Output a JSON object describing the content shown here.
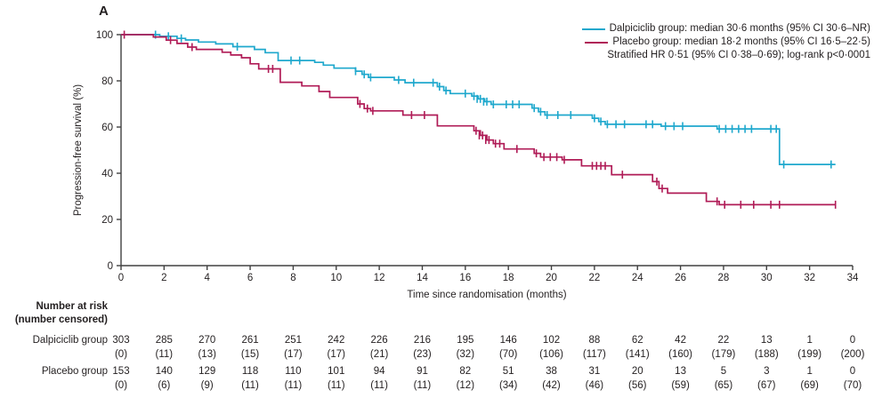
{
  "panel": {
    "label": "A"
  },
  "legend": {
    "entries": [
      {
        "label": "Dalpiciclib group: median 30·6 months (95% CI 30·6–NR)",
        "color": "#1FA8CD"
      },
      {
        "label": "Placebo group: median 18·2 months (95% CI 16·5–22·5)",
        "color": "#B01C57"
      }
    ],
    "note": "Stratified HR 0·51 (95% CI 0·38–0·69); log-rank p<0·0001"
  },
  "chart_data": {
    "type": "line",
    "subtype": "kaplan-meier-step",
    "title": "",
    "xlabel": "Time since randomisation (months)",
    "ylabel": "Progression-free survival (%)",
    "xlim": [
      0,
      34
    ],
    "ylim": [
      0,
      100
    ],
    "xticks": [
      0,
      2,
      4,
      6,
      8,
      10,
      12,
      14,
      16,
      18,
      20,
      22,
      24,
      26,
      28,
      30,
      32,
      34
    ],
    "yticks": [
      0,
      20,
      40,
      60,
      80,
      100
    ],
    "grid": false,
    "legend_position": "top-right",
    "series": [
      {
        "name": "Dalpiciclib group",
        "color": "#1FA8CD",
        "start": 100,
        "end_time": 33.2,
        "drops": [
          [
            1.8,
            99.3
          ],
          [
            2.6,
            98.4
          ],
          [
            3.0,
            97.7
          ],
          [
            3.6,
            96.8
          ],
          [
            4.4,
            96.0
          ],
          [
            5.2,
            94.8
          ],
          [
            6.2,
            93.6
          ],
          [
            6.7,
            92.2
          ],
          [
            7.3,
            88.8
          ],
          [
            9.0,
            88.0
          ],
          [
            9.4,
            86.8
          ],
          [
            9.9,
            85.5
          ],
          [
            10.9,
            84.2
          ],
          [
            11.2,
            82.8
          ],
          [
            11.5,
            81.5
          ],
          [
            12.7,
            80.4
          ],
          [
            13.2,
            79.2
          ],
          [
            14.7,
            77.5
          ],
          [
            15.0,
            75.8
          ],
          [
            15.3,
            74.5
          ],
          [
            16.3,
            73.4
          ],
          [
            16.6,
            72.2
          ],
          [
            16.9,
            71.0
          ],
          [
            17.2,
            69.8
          ],
          [
            19.1,
            68.2
          ],
          [
            19.4,
            66.6
          ],
          [
            19.7,
            65.2
          ],
          [
            21.9,
            63.8
          ],
          [
            22.2,
            62.4
          ],
          [
            22.5,
            61.2
          ],
          [
            25.1,
            60.4
          ],
          [
            27.7,
            59.2
          ],
          [
            30.6,
            43.8
          ]
        ],
        "censors": [
          [
            1.6,
            100
          ],
          [
            2.2,
            99.3
          ],
          [
            2.8,
            98.4
          ],
          [
            5.4,
            94.8
          ],
          [
            7.9,
            88.8
          ],
          [
            8.3,
            88.8
          ],
          [
            10.9,
            84.2
          ],
          [
            11.3,
            82.8
          ],
          [
            11.6,
            81.5
          ],
          [
            12.9,
            80.4
          ],
          [
            13.6,
            79.2
          ],
          [
            14.5,
            79.2
          ],
          [
            14.8,
            77.5
          ],
          [
            15.1,
            75.8
          ],
          [
            16.0,
            74.5
          ],
          [
            16.4,
            73.4
          ],
          [
            16.55,
            72.2
          ],
          [
            16.7,
            72.2
          ],
          [
            16.85,
            71.0
          ],
          [
            17.0,
            71.0
          ],
          [
            17.3,
            69.8
          ],
          [
            17.9,
            69.8
          ],
          [
            18.2,
            69.8
          ],
          [
            18.5,
            69.8
          ],
          [
            19.2,
            68.2
          ],
          [
            19.5,
            66.6
          ],
          [
            19.8,
            65.2
          ],
          [
            20.3,
            65.2
          ],
          [
            20.9,
            65.2
          ],
          [
            22.0,
            63.8
          ],
          [
            22.3,
            62.4
          ],
          [
            22.6,
            61.2
          ],
          [
            23.0,
            61.2
          ],
          [
            23.4,
            61.2
          ],
          [
            24.4,
            61.2
          ],
          [
            24.7,
            61.2
          ],
          [
            25.3,
            60.4
          ],
          [
            25.7,
            60.4
          ],
          [
            26.1,
            60.4
          ],
          [
            27.8,
            59.2
          ],
          [
            28.1,
            59.2
          ],
          [
            28.4,
            59.2
          ],
          [
            28.7,
            59.2
          ],
          [
            29.0,
            59.2
          ],
          [
            29.3,
            59.2
          ],
          [
            30.2,
            59.2
          ],
          [
            30.45,
            59.2
          ],
          [
            30.8,
            43.8
          ],
          [
            33.0,
            43.8
          ]
        ]
      },
      {
        "name": "Placebo group",
        "color": "#B01C57",
        "start": 100,
        "end_time": 33.2,
        "drops": [
          [
            1.5,
            99.0
          ],
          [
            2.1,
            97.6
          ],
          [
            2.6,
            96.2
          ],
          [
            3.1,
            94.6
          ],
          [
            3.5,
            93.6
          ],
          [
            4.7,
            92.4
          ],
          [
            5.1,
            91.2
          ],
          [
            5.6,
            90.0
          ],
          [
            6.0,
            87.4
          ],
          [
            6.4,
            85.2
          ],
          [
            7.4,
            79.4
          ],
          [
            8.4,
            77.8
          ],
          [
            9.2,
            75.4
          ],
          [
            9.7,
            72.8
          ],
          [
            11.0,
            70.0
          ],
          [
            11.3,
            68.0
          ],
          [
            11.6,
            67.0
          ],
          [
            13.1,
            65.2
          ],
          [
            14.7,
            60.5
          ],
          [
            16.4,
            58.4
          ],
          [
            16.7,
            56.4
          ],
          [
            17.0,
            54.4
          ],
          [
            17.3,
            52.8
          ],
          [
            17.8,
            50.5
          ],
          [
            19.2,
            48.6
          ],
          [
            19.5,
            47.0
          ],
          [
            20.5,
            45.8
          ],
          [
            21.4,
            43.2
          ],
          [
            22.8,
            39.4
          ],
          [
            24.7,
            36.4
          ],
          [
            25.0,
            33.4
          ],
          [
            25.4,
            31.4
          ],
          [
            27.2,
            27.8
          ],
          [
            27.8,
            26.4
          ]
        ],
        "censors": [
          [
            0.15,
            100
          ],
          [
            2.3,
            97.6
          ],
          [
            3.3,
            94.6
          ],
          [
            6.85,
            85.2
          ],
          [
            7.05,
            85.2
          ],
          [
            11.1,
            70.0
          ],
          [
            11.45,
            68.0
          ],
          [
            11.7,
            67.0
          ],
          [
            13.5,
            65.2
          ],
          [
            14.1,
            65.2
          ],
          [
            16.5,
            58.4
          ],
          [
            16.65,
            56.4
          ],
          [
            16.8,
            56.4
          ],
          [
            16.95,
            54.4
          ],
          [
            17.1,
            54.4
          ],
          [
            17.4,
            52.8
          ],
          [
            17.6,
            52.8
          ],
          [
            18.4,
            50.5
          ],
          [
            19.3,
            48.6
          ],
          [
            19.65,
            47.0
          ],
          [
            19.95,
            47.0
          ],
          [
            20.25,
            47.0
          ],
          [
            20.6,
            45.8
          ],
          [
            21.9,
            43.2
          ],
          [
            22.1,
            43.2
          ],
          [
            22.3,
            43.2
          ],
          [
            22.5,
            43.2
          ],
          [
            23.3,
            39.4
          ],
          [
            24.9,
            36.4
          ],
          [
            25.15,
            33.4
          ],
          [
            27.7,
            27.8
          ],
          [
            28.05,
            26.4
          ],
          [
            28.8,
            26.4
          ],
          [
            29.4,
            26.4
          ],
          [
            30.2,
            26.4
          ],
          [
            30.6,
            26.4
          ],
          [
            33.2,
            26.4
          ]
        ]
      }
    ]
  },
  "risk_table": {
    "title_line1": "Number at risk",
    "title_line2": "(number censored)",
    "timepoints": [
      0,
      2,
      4,
      6,
      8,
      10,
      12,
      14,
      16,
      18,
      20,
      22,
      24,
      26,
      28,
      30,
      32,
      34
    ],
    "rows": [
      {
        "label": "Dalpiciclib group",
        "at_risk": [
          303,
          285,
          270,
          261,
          251,
          242,
          226,
          216,
          195,
          146,
          102,
          88,
          62,
          42,
          22,
          13,
          1,
          0
        ],
        "censored": [
          0,
          11,
          13,
          15,
          17,
          17,
          21,
          23,
          32,
          70,
          106,
          117,
          141,
          160,
          179,
          188,
          199,
          200
        ]
      },
      {
        "label": "Placebo group",
        "at_risk": [
          153,
          140,
          129,
          118,
          110,
          101,
          94,
          91,
          82,
          51,
          38,
          31,
          20,
          13,
          5,
          3,
          1,
          0
        ],
        "censored": [
          0,
          6,
          9,
          11,
          11,
          11,
          11,
          11,
          12,
          34,
          42,
          46,
          56,
          59,
          65,
          67,
          69,
          70
        ]
      }
    ]
  },
  "colors": {
    "axis": "#404040",
    "text": "#231f20"
  }
}
